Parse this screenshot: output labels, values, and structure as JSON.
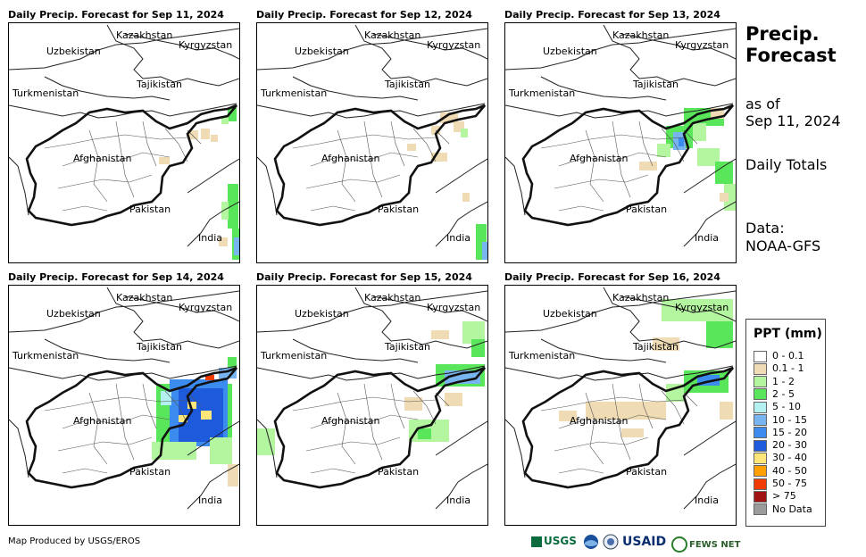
{
  "panels": [
    {
      "title": "Daily Precip. Forecast for Sep 11, 2024"
    },
    {
      "title": "Daily Precip. Forecast for Sep 12, 2024"
    },
    {
      "title": "Daily Precip. Forecast for Sep 13, 2024"
    },
    {
      "title": "Daily Precip. Forecast for Sep 14, 2024"
    },
    {
      "title": "Daily Precip. Forecast for Sep 15, 2024"
    },
    {
      "title": "Daily Precip. Forecast for Sep 16, 2024"
    }
  ],
  "labels": {
    "kazakhstan": "Kazakhstan",
    "kyrgyzstan": "Kyrgyzstan",
    "uzbekistan": "Uzbekistan",
    "tajikistan": "Tajikistan",
    "turkmenistan": "Turkmenistan",
    "afghanistan": "Afghanistan",
    "pakistan": "Pakistan",
    "india": "India"
  },
  "side": {
    "title_line1": "Precip.",
    "title_line2": "Forecast",
    "asof_line1": "as of",
    "asof_line2": "Sep 11, 2024",
    "totals": "Daily Totals",
    "data_line1": "Data:",
    "data_line2": "NOAA-GFS"
  },
  "legend": {
    "title": "PPT (mm)",
    "items": [
      {
        "label": "0 - 0.1",
        "color": "#ffffff"
      },
      {
        "label": "0.1 - 1",
        "color": "#f0dcb4"
      },
      {
        "label": "1 - 2",
        "color": "#b4f5a0"
      },
      {
        "label": "2 - 5",
        "color": "#5ae65a"
      },
      {
        "label": "5 - 10",
        "color": "#b4f0f0"
      },
      {
        "label": "10 - 15",
        "color": "#78b4f0"
      },
      {
        "label": "15 - 20",
        "color": "#3c8cf0"
      },
      {
        "label": "20 - 30",
        "color": "#1e5adc"
      },
      {
        "label": "30 - 40",
        "color": "#ffe678"
      },
      {
        "label": "40 - 50",
        "color": "#ffa000"
      },
      {
        "label": "50 - 75",
        "color": "#f03c00"
      },
      {
        "label": "> 75",
        "color": "#a01414"
      },
      {
        "label": "No Data",
        "color": "#9b9b9b"
      }
    ]
  },
  "footer": "Map Produced by USGS/EROS",
  "logos": {
    "usgs": "USGS",
    "usaid": "USAID",
    "fewsnet": "FEWS NET"
  }
}
